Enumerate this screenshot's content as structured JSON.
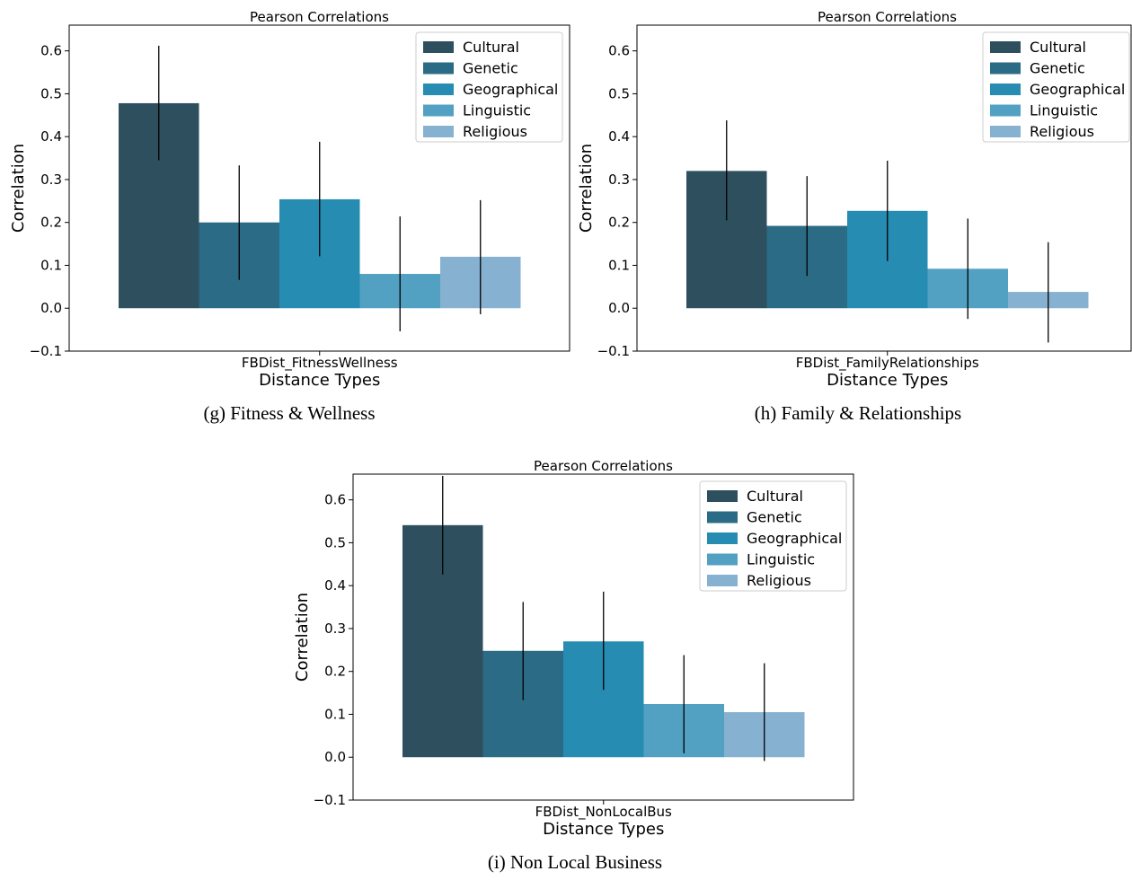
{
  "colors": [
    "#2e4f5d",
    "#2b6b85",
    "#268cb1",
    "#53a1c2",
    "#87b1d1"
  ],
  "chart_data": [
    {
      "type": "bar",
      "title": "Pearson Correlations",
      "category": "FBDist_FitnessWellness",
      "xlabel": "Distance Types",
      "ylabel": "Correlation",
      "caption": "(g)   Fitness & Wellness",
      "ylim": [
        -0.1,
        0.66
      ],
      "yticks": [
        "0.6",
        "0.5",
        "0.4",
        "0.3",
        "0.2",
        "0.1",
        "0.0",
        "−0.1"
      ],
      "legend_position": "top-right",
      "series": [
        {
          "name": "Cultural",
          "value": 0.478,
          "err_low": 0.345,
          "err_high": 0.612
        },
        {
          "name": "Genetic",
          "value": 0.2,
          "err_low": 0.066,
          "err_high": 0.333
        },
        {
          "name": "Geographical",
          "value": 0.254,
          "err_low": 0.121,
          "err_high": 0.388
        },
        {
          "name": "Linguistic",
          "value": 0.08,
          "err_low": -0.054,
          "err_high": 0.214
        },
        {
          "name": "Religious",
          "value": 0.12,
          "err_low": -0.014,
          "err_high": 0.252
        }
      ]
    },
    {
      "type": "bar",
      "title": "Pearson Correlations",
      "category": "FBDist_FamilyRelationships",
      "xlabel": "Distance Types",
      "ylabel": "Correlation",
      "caption": "(h)   Family & Relationships",
      "ylim": [
        -0.1,
        0.66
      ],
      "yticks": [
        "0.6",
        "0.5",
        "0.4",
        "0.3",
        "0.2",
        "0.1",
        "0.0",
        "−0.1"
      ],
      "legend_position": "top-right",
      "series": [
        {
          "name": "Cultural",
          "value": 0.32,
          "err_low": 0.205,
          "err_high": 0.438
        },
        {
          "name": "Genetic",
          "value": 0.192,
          "err_low": 0.075,
          "err_high": 0.308
        },
        {
          "name": "Geographical",
          "value": 0.227,
          "err_low": 0.11,
          "err_high": 0.344
        },
        {
          "name": "Linguistic",
          "value": 0.092,
          "err_low": -0.025,
          "err_high": 0.209
        },
        {
          "name": "Religious",
          "value": 0.038,
          "err_low": -0.08,
          "err_high": 0.154
        }
      ]
    },
    {
      "type": "bar",
      "title": "Pearson Correlations",
      "category": "FBDist_NonLocalBus",
      "xlabel": "Distance Types",
      "ylabel": "Correlation",
      "caption": "(i)   Non Local Business",
      "ylim": [
        -0.1,
        0.66
      ],
      "yticks": [
        "0.6",
        "0.5",
        "0.4",
        "0.3",
        "0.2",
        "0.1",
        "0.0",
        "−0.1"
      ],
      "legend_position": "top-right",
      "series": [
        {
          "name": "Cultural",
          "value": 0.541,
          "err_low": 0.426,
          "err_high": 0.656
        },
        {
          "name": "Genetic",
          "value": 0.248,
          "err_low": 0.133,
          "err_high": 0.362
        },
        {
          "name": "Geographical",
          "value": 0.27,
          "err_low": 0.157,
          "err_high": 0.386
        },
        {
          "name": "Linguistic",
          "value": 0.124,
          "err_low": 0.009,
          "err_high": 0.238
        },
        {
          "name": "Religious",
          "value": 0.105,
          "err_low": -0.009,
          "err_high": 0.219
        }
      ]
    }
  ]
}
